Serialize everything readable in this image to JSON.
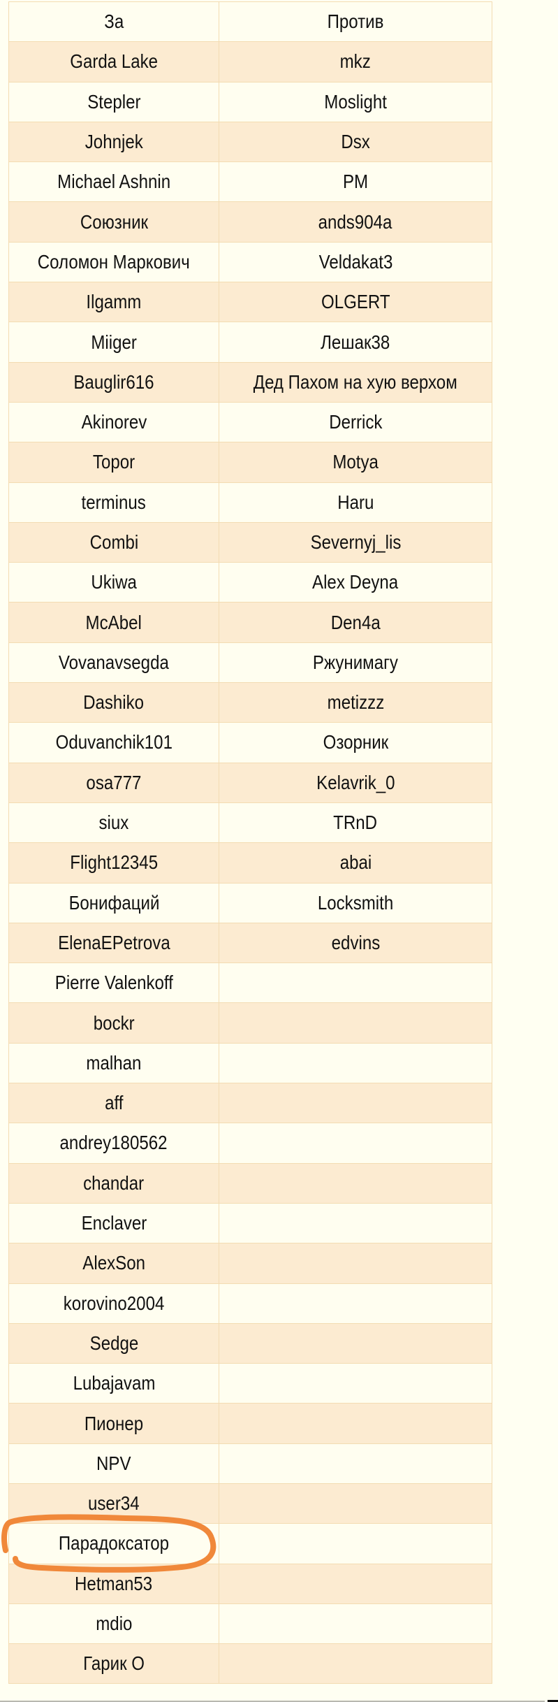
{
  "table": {
    "headers": [
      "За",
      "Против"
    ],
    "rows": [
      [
        "Garda Lake",
        "mkz"
      ],
      [
        "Stepler",
        "Moslight"
      ],
      [
        "Johnjek",
        "Dsx"
      ],
      [
        "Michael Ashnin",
        "PM"
      ],
      [
        "Союзник",
        "ands904a"
      ],
      [
        "Соломон Маркович",
        "Veldakat3"
      ],
      [
        "Ilgamm",
        "OLGERT"
      ],
      [
        "Miiger",
        "Лешак38"
      ],
      [
        "Bauglir616",
        "Дед Пахом на хую верхом"
      ],
      [
        "Akinorev",
        "Derrick"
      ],
      [
        "Topor",
        "Motya"
      ],
      [
        "terminus",
        "Haru"
      ],
      [
        "Combi",
        "Severnyj_lis"
      ],
      [
        "Ukiwa",
        "Alex Deyna"
      ],
      [
        "McAbel",
        "Den4a"
      ],
      [
        "Vovanavsegda",
        "Ржунимагу"
      ],
      [
        "Dashiko",
        "metizzz"
      ],
      [
        "Oduvanchik101",
        "Озорник"
      ],
      [
        "osa777",
        "Kelavrik_0"
      ],
      [
        "siux",
        "TRnD"
      ],
      [
        "Flight12345",
        "abai"
      ],
      [
        "Бонифаций",
        "Locksmith"
      ],
      [
        "ElenaEPetrova",
        "edvins"
      ],
      [
        "Pierre Valenkoff",
        ""
      ],
      [
        "bockr",
        ""
      ],
      [
        "malhan",
        ""
      ],
      [
        "aff",
        ""
      ],
      [
        "andrey180562",
        ""
      ],
      [
        "chandar",
        ""
      ],
      [
        "Enclaver",
        ""
      ],
      [
        "AlexSon",
        ""
      ],
      [
        "korovino2004",
        ""
      ],
      [
        "Sedge",
        ""
      ],
      [
        "Lubajavam",
        ""
      ],
      [
        "Пионер",
        ""
      ],
      [
        "NPV",
        ""
      ],
      [
        "user34",
        ""
      ],
      [
        "Парадоксатор",
        ""
      ],
      [
        "Hetman53",
        ""
      ],
      [
        "mdio",
        ""
      ],
      [
        "Гарик О",
        ""
      ]
    ],
    "highlighted_entry": "Парадоксатор"
  },
  "colors": {
    "row_light": "#fffef0",
    "row_dark": "#fcebd1",
    "border": "#f3dcb2",
    "highlight": "#f0883a"
  }
}
